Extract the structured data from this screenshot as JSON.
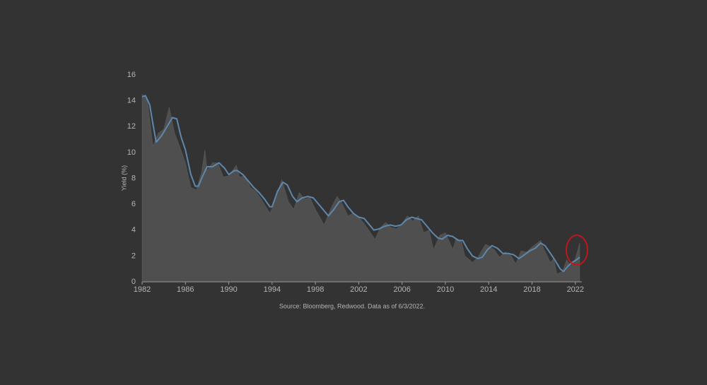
{
  "chart_data": {
    "type": "area",
    "ylabel": "Yield (%)",
    "source": "Source: Bloomberg, Redwood. Data as of 6/3/2022.",
    "xlim": [
      1982,
      2022.6
    ],
    "xticks": [
      1982,
      1986,
      1990,
      1994,
      1998,
      2002,
      2006,
      2010,
      2014,
      2018,
      2022
    ],
    "ylim": [
      0,
      16
    ],
    "yticks": [
      0,
      2,
      4,
      6,
      8,
      10,
      12,
      14,
      16
    ],
    "series": [
      {
        "type": "area",
        "color": "#4f4f4f",
        "x": [
          1982.0,
          1982.5,
          1983.0,
          1983.5,
          1984.0,
          1984.5,
          1985.0,
          1985.5,
          1986.0,
          1986.5,
          1987.0,
          1987.5,
          1987.8,
          1988.0,
          1988.5,
          1989.0,
          1989.5,
          1990.0,
          1990.7,
          1991.0,
          1991.5,
          1992.0,
          1992.5,
          1993.0,
          1993.8,
          1994.0,
          1994.9,
          1995.5,
          1996.0,
          1996.5,
          1997.0,
          1997.5,
          1998.0,
          1998.8,
          1999.5,
          2000.0,
          2000.5,
          2001.0,
          2001.5,
          2002.0,
          2002.5,
          2003.0,
          2003.5,
          2004.0,
          2004.5,
          2005.0,
          2005.5,
          2006.0,
          2006.5,
          2007.0,
          2007.5,
          2008.0,
          2008.5,
          2008.9,
          2009.5,
          2010.0,
          2010.7,
          2011.0,
          2011.5,
          2011.8,
          2012.5,
          2013.0,
          2013.7,
          2014.0,
          2014.5,
          2015.0,
          2015.5,
          2016.0,
          2016.5,
          2017.0,
          2017.5,
          2018.0,
          2018.8,
          2019.0,
          2019.7,
          2020.0,
          2020.3,
          2020.8,
          2021.2,
          2021.6,
          2022.0,
          2022.4
        ],
        "values": [
          14.5,
          14.0,
          10.5,
          11.5,
          11.8,
          13.5,
          11.5,
          10.4,
          9.2,
          7.3,
          7.1,
          8.5,
          10.2,
          8.6,
          9.2,
          9.2,
          8.1,
          8.2,
          9.0,
          8.1,
          8.2,
          7.3,
          7.0,
          6.4,
          5.3,
          5.7,
          7.9,
          6.2,
          5.6,
          6.9,
          6.4,
          6.5,
          5.6,
          4.4,
          5.8,
          6.6,
          6.0,
          5.1,
          5.3,
          5.0,
          4.5,
          3.9,
          3.3,
          4.2,
          4.6,
          4.2,
          4.1,
          4.5,
          5.1,
          4.7,
          5.1,
          3.8,
          4.0,
          2.5,
          3.6,
          3.8,
          2.5,
          3.4,
          3.1,
          2.0,
          1.5,
          1.9,
          2.9,
          2.8,
          2.5,
          1.9,
          2.3,
          2.1,
          1.4,
          2.4,
          2.3,
          2.7,
          3.2,
          2.7,
          1.5,
          1.8,
          0.6,
          0.8,
          1.7,
          1.2,
          1.8,
          3.0
        ]
      },
      {
        "type": "line",
        "color": "#5d87ad",
        "x": [
          1982.0,
          1982.3,
          1982.7,
          1983.0,
          1983.3,
          1983.8,
          1984.3,
          1984.8,
          1985.2,
          1985.6,
          1986.0,
          1986.5,
          1986.9,
          1987.2,
          1987.6,
          1988.0,
          1988.5,
          1989.1,
          1989.6,
          1990.0,
          1990.5,
          1990.8,
          1991.3,
          1991.8,
          1992.3,
          1992.8,
          1993.3,
          1993.8,
          1994.0,
          1994.5,
          1995.0,
          1995.4,
          1995.9,
          1996.3,
          1996.8,
          1997.3,
          1997.8,
          1998.3,
          1998.8,
          1999.2,
          1999.7,
          2000.2,
          2000.6,
          2001.0,
          2001.5,
          2002.0,
          2002.5,
          2002.9,
          2003.4,
          2003.9,
          2004.4,
          2004.9,
          2005.4,
          2005.9,
          2006.4,
          2006.9,
          2007.3,
          2007.8,
          2008.3,
          2008.8,
          2009.3,
          2009.7,
          2010.2,
          2010.7,
          2011.2,
          2011.6,
          2012.0,
          2012.5,
          2013.0,
          2013.4,
          2013.9,
          2014.3,
          2014.8,
          2015.3,
          2015.8,
          2016.3,
          2016.8,
          2017.3,
          2017.8,
          2018.3,
          2018.8,
          2019.2,
          2019.7,
          2020.1,
          2020.6,
          2020.9,
          2021.3,
          2021.7,
          2022.1,
          2022.4
        ],
        "values": [
          14.3,
          14.4,
          13.7,
          12.2,
          10.8,
          11.3,
          12.0,
          12.7,
          12.6,
          11.2,
          10.2,
          8.3,
          7.4,
          7.4,
          8.2,
          8.9,
          8.9,
          9.2,
          8.8,
          8.3,
          8.6,
          8.6,
          8.3,
          7.8,
          7.3,
          6.9,
          6.4,
          5.8,
          5.8,
          7.0,
          7.7,
          7.5,
          6.6,
          6.2,
          6.5,
          6.6,
          6.5,
          6.0,
          5.5,
          5.1,
          5.6,
          6.2,
          6.3,
          5.8,
          5.3,
          5.0,
          4.9,
          4.5,
          4.0,
          4.1,
          4.3,
          4.4,
          4.3,
          4.4,
          4.8,
          5.0,
          4.9,
          4.8,
          4.3,
          3.8,
          3.4,
          3.3,
          3.6,
          3.5,
          3.2,
          3.2,
          2.6,
          2.0,
          1.8,
          1.9,
          2.5,
          2.8,
          2.6,
          2.2,
          2.2,
          2.1,
          1.8,
          2.1,
          2.4,
          2.6,
          3.0,
          2.8,
          2.2,
          1.7,
          1.0,
          0.8,
          1.2,
          1.5,
          1.7,
          1.9
        ]
      }
    ]
  }
}
